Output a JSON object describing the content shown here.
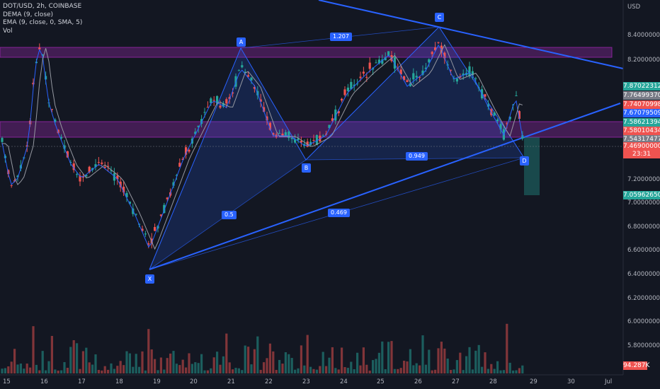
{
  "legend": {
    "symbol_line": "DOT/USD, 2h, COINBASE",
    "dema_line": "DEMA (9, close)",
    "ema_line": "EMA (9, close, 0, SMA, 5)",
    "vol_line": "Vol"
  },
  "axis": {
    "currency": "USD",
    "y_ticks": [
      "8.40000000",
      "8.20000000",
      "7.20000000",
      "7.00000000",
      "6.80000000",
      "6.60000000",
      "6.40000000",
      "6.20000000",
      "6.00000000",
      "5.80000000"
    ],
    "x_ticks": [
      "15",
      "16",
      "17",
      "18",
      "19",
      "20",
      "21",
      "22",
      "23",
      "24",
      "25",
      "26",
      "27",
      "28",
      "29",
      "30",
      "Jul"
    ]
  },
  "price_tags": {
    "t1": "7.87022312",
    "t2": "7.76499370",
    "t3": "7.74070998",
    "t4": "7.67079509",
    "t5": "7.58621394",
    "t6": "7.58010434",
    "t7": "7.54317477",
    "t8": "7.46900000",
    "t8_countdown": "23:31",
    "t9": "7.05962650",
    "volume": "94.287K"
  },
  "colors": {
    "background": "#131722",
    "up": "#26a69a",
    "down": "#ef5350",
    "pattern": "#2962ff",
    "zone": "#9c27b0"
  },
  "pattern": {
    "points": [
      "X",
      "A",
      "B",
      "C",
      "D"
    ],
    "ratios": {
      "xb": "0.5",
      "ac": "1.207",
      "bd": "0.949",
      "xd": "0.469"
    }
  }
}
